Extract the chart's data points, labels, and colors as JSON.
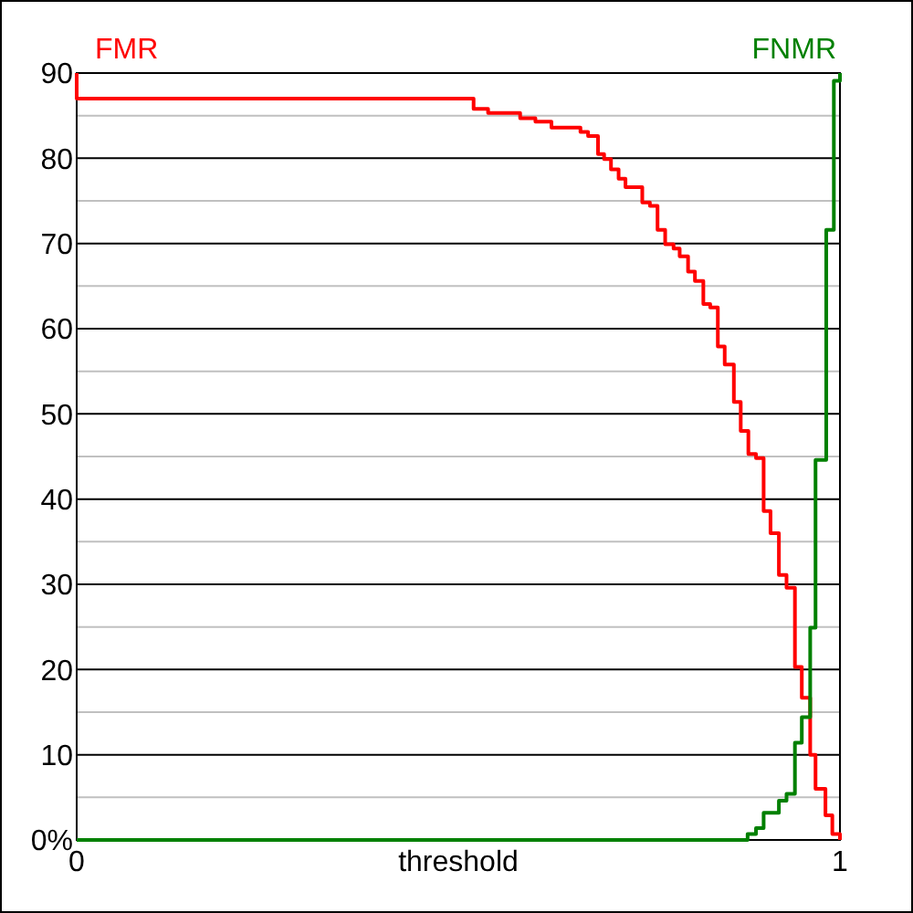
{
  "chart_data": {
    "type": "step",
    "xlabel": "threshold",
    "xlim": [
      0,
      1
    ],
    "xticks": [
      0,
      1
    ],
    "ylim": [
      0,
      90
    ],
    "yticks": [
      {
        "value": 0,
        "label": "0%"
      },
      {
        "value": 5,
        "label": null
      },
      10,
      {
        "value": 15,
        "label": null
      },
      20,
      {
        "value": 25,
        "label": null
      },
      30,
      {
        "value": 35,
        "label": null
      },
      40,
      {
        "value": 45,
        "label": null
      },
      50,
      {
        "value": 55,
        "label": null
      },
      60,
      {
        "value": 65,
        "label": null
      },
      70,
      {
        "value": 75,
        "label": null
      },
      80,
      {
        "value": 85,
        "label": null
      },
      90
    ],
    "grid": "y",
    "series": [
      {
        "name": "FMR",
        "color": "#ff0000",
        "x": [
          0,
          0,
          0.52,
          0.539,
          0.581,
          0.601,
          0.622,
          0.66,
          0.67,
          0.683,
          0.691,
          0.7,
          0.71,
          0.719,
          0.741,
          0.751,
          0.761,
          0.771,
          0.782,
          0.79,
          0.801,
          0.81,
          0.821,
          0.83,
          0.84,
          0.849,
          0.861,
          0.87,
          0.88,
          0.89,
          0.9,
          0.909,
          0.92,
          0.93,
          0.941,
          0.95,
          0.961,
          0.968,
          0.981,
          0.99,
          1
        ],
        "values": [
          90,
          87,
          85.8,
          85.3,
          84.7,
          84.3,
          83.6,
          83.1,
          82.6,
          80.5,
          79.9,
          78.7,
          77.6,
          76.6,
          74.8,
          74.4,
          71.6,
          69.9,
          69.4,
          68.5,
          66.7,
          65.6,
          62.9,
          62.5,
          57.9,
          55.8,
          51.4,
          48,
          45.3,
          44.8,
          38.6,
          36,
          31.1,
          29.6,
          20.3,
          16.7,
          10,
          6,
          2.9,
          0.7,
          0
        ]
      },
      {
        "name": "FNMR",
        "color": "#008000",
        "x": [
          0,
          0.879,
          0.89,
          0.9,
          0.92,
          0.93,
          0.941,
          0.95,
          0.961,
          0.968,
          0.982,
          0.992,
          1
        ],
        "values": [
          0,
          0.7,
          1.4,
          3.2,
          4.6,
          5.4,
          11.4,
          14.4,
          24.9,
          44.6,
          71.6,
          89.1,
          90
        ]
      }
    ]
  }
}
